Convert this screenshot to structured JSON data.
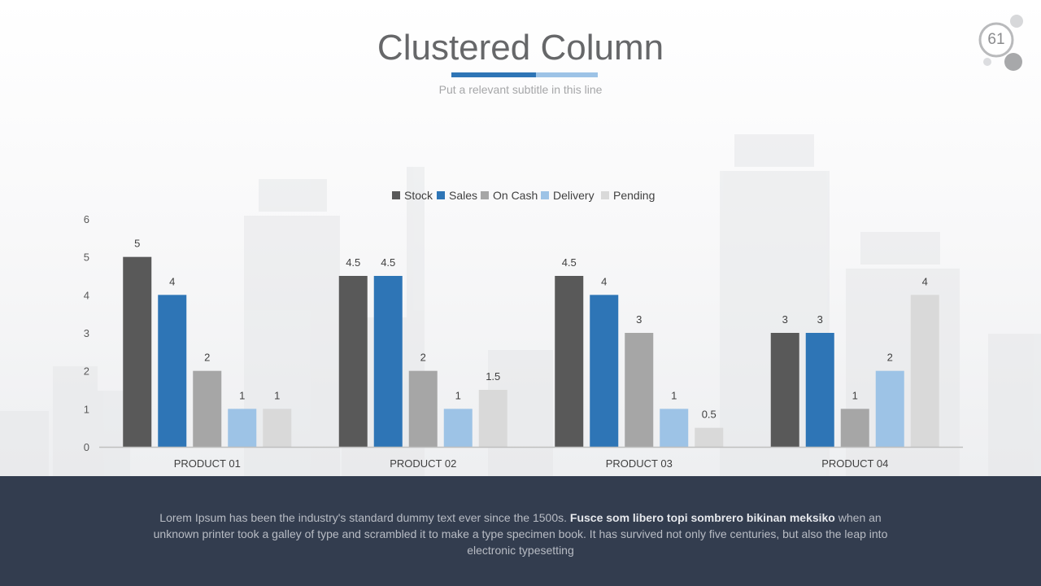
{
  "slide": {
    "title": "Clustered Column",
    "subtitle": "Put a relevant subtitle in this line",
    "page_number": "61",
    "footer": {
      "text_before": "Lorem Ipsum has been the industry's standard dummy text ever since the 1500s. ",
      "text_bold": "Fusce som libero topi sombrero bikinan meksiko",
      "text_after": " when an unknown printer took a galley of type and scrambled it to make a type specimen book. It has survived not only five centuries, but also the leap into electronic typesetting"
    }
  },
  "colors": {
    "title_accent_dark": "#2e75b6",
    "title_accent_light": "#9dc3e6",
    "footer_bg": "#333d4f"
  },
  "chart_data": {
    "type": "bar",
    "categories": [
      "PRODUCT 01",
      "PRODUCT 02",
      "PRODUCT 03",
      "PRODUCT 04"
    ],
    "series": [
      {
        "name": "Stock",
        "color": "#595959",
        "values": [
          5,
          4.5,
          4.5,
          3
        ]
      },
      {
        "name": "Sales",
        "color": "#2e75b6",
        "values": [
          4,
          4.5,
          4,
          3
        ]
      },
      {
        "name": "On Cash",
        "color": "#a6a6a6",
        "values": [
          2,
          2,
          3,
          1
        ]
      },
      {
        "name": "Delivery",
        "color": "#9dc3e6",
        "values": [
          1,
          1,
          1,
          2
        ]
      },
      {
        "name": "Pending",
        "color": "#d9d9d9",
        "values": [
          1,
          1.5,
          0.5,
          4
        ]
      }
    ],
    "yticks": [
      0,
      1,
      2,
      3,
      4,
      5,
      6
    ],
    "ylim": [
      0,
      6
    ],
    "grid": false,
    "legend": "top-center",
    "data_labels": true
  }
}
